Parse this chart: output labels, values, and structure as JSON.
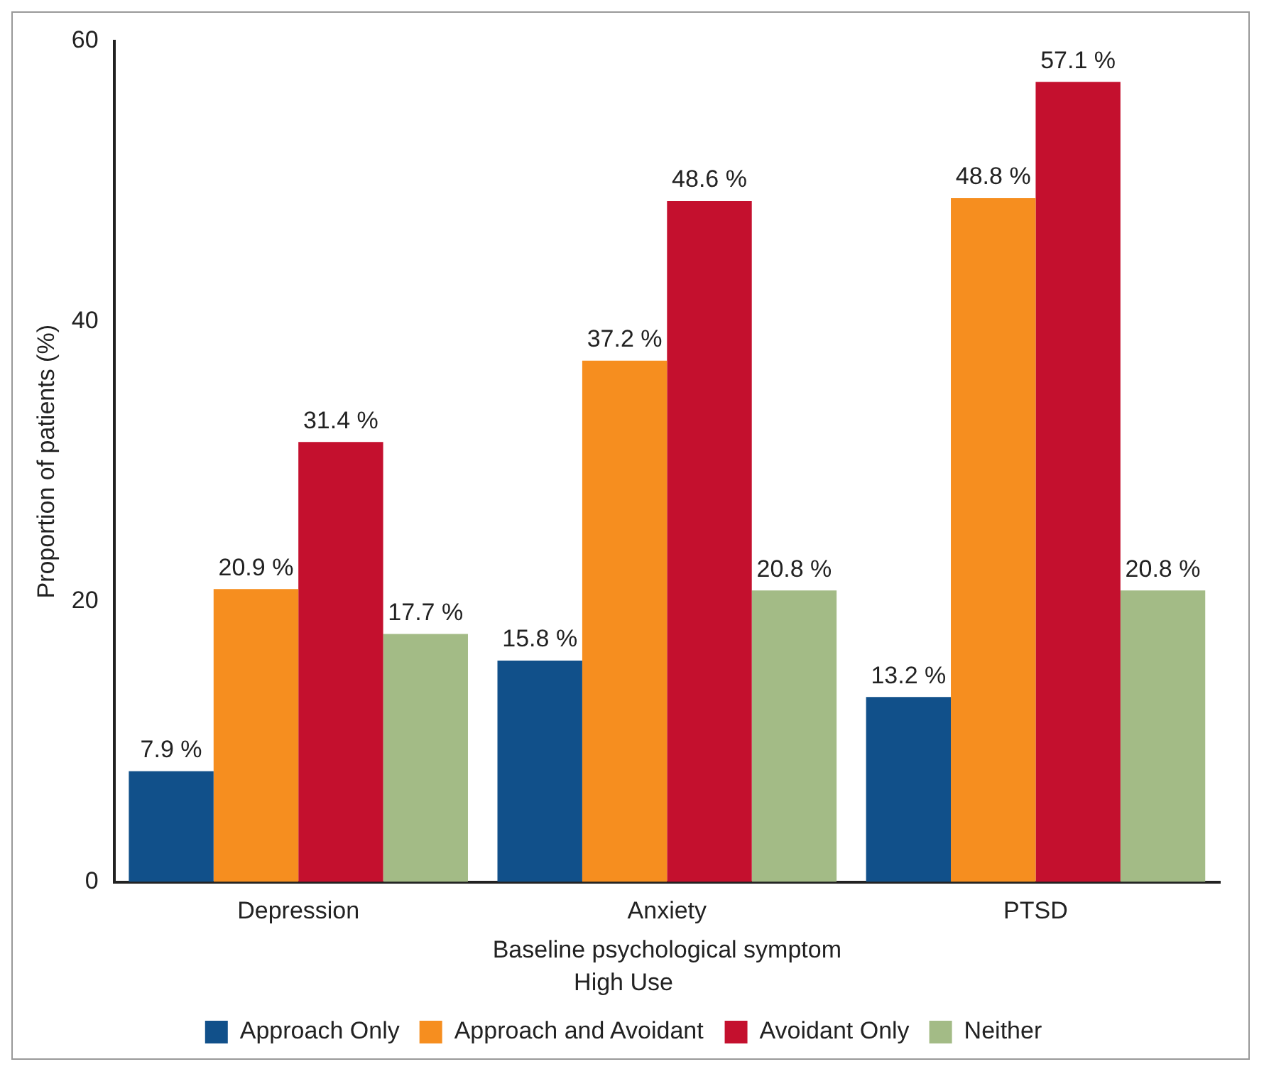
{
  "chart_data": {
    "type": "bar",
    "xlabel": "Baseline psychological symptom",
    "ylabel": "Proportion of patients (%)",
    "legend_title": "High Use",
    "categories": [
      "Depression",
      "Anxiety",
      "PTSD"
    ],
    "series": [
      {
        "name": "Approach Only",
        "color": "#11508a",
        "values": [
          7.9,
          15.8,
          13.2
        ],
        "value_labels": [
          "7.9 %",
          "15.8 %",
          "13.2 %"
        ]
      },
      {
        "name": "Approach and Avoidant",
        "color": "#f68e1f",
        "values": [
          20.9,
          37.2,
          48.8
        ],
        "value_labels": [
          "20.9 %",
          "37.2 %",
          "48.8 %"
        ]
      },
      {
        "name": "Avoidant Only",
        "color": "#c4102e",
        "values": [
          31.4,
          48.6,
          57.1
        ],
        "value_labels": [
          "31.4 %",
          "48.6 %",
          "57.1 %"
        ]
      },
      {
        "name": "Neither",
        "color": "#a3bb86",
        "values": [
          17.7,
          20.8,
          20.8
        ],
        "value_labels": [
          "17.7 %",
          "20.8 %",
          "20.8 %"
        ]
      }
    ],
    "ylim": [
      0,
      60
    ],
    "yticks": [
      0,
      20,
      40,
      60
    ],
    "grid": false,
    "legend": "bottom"
  }
}
